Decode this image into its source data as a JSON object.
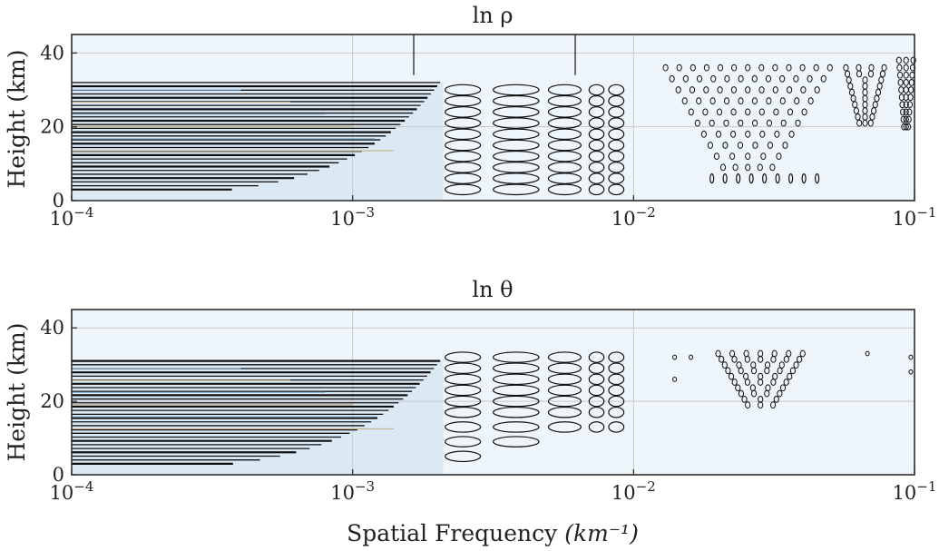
{
  "figure": {
    "xlabel": "Spatial Frequency",
    "xlabel_unit": "(km⁻¹)"
  },
  "chart_data": [
    {
      "type": "contour",
      "title": "ln ρ",
      "xlabel": "",
      "ylabel": "Height (km)",
      "xscale": "log",
      "xlim": [
        0.0001,
        0.1
      ],
      "ylim": [
        0,
        45
      ],
      "x_ticks": [
        0.0001,
        0.001,
        0.01,
        0.1
      ],
      "x_tick_labels": [
        {
          "base": "10",
          "exp": "−4"
        },
        {
          "base": "10",
          "exp": "−3"
        },
        {
          "base": "10",
          "exp": "−2"
        },
        {
          "base": "10",
          "exp": "−1"
        }
      ],
      "y_ticks": [
        0,
        20,
        40
      ],
      "grid": true,
      "band_top": 32,
      "rows": [
        3,
        6,
        9,
        12,
        15,
        18,
        21,
        24,
        27,
        30
      ],
      "lanes": [
        {
          "x_start": 0.0021,
          "x_end": 0.0029,
          "y_min": 3,
          "y_max": 32
        },
        {
          "x_start": 0.0031,
          "x_end": 0.0047,
          "y_min": 3,
          "y_max": 32
        },
        {
          "x_start": 0.0049,
          "x_end": 0.0066,
          "y_min": 1,
          "y_max": 32
        },
        {
          "x_start": 0.0069,
          "x_end": 0.0079,
          "y_min": 3,
          "y_max": 32
        },
        {
          "x_start": 0.0081,
          "x_end": 0.0093,
          "y_min": 1,
          "y_max": 30
        }
      ],
      "tall_contours": [
        {
          "x": 0.00165,
          "y_start": 34,
          "y_end": 45
        },
        {
          "x": 0.0062,
          "y_start": 34,
          "y_end": 45
        }
      ],
      "triangles": [
        {
          "x_start": 0.013,
          "x_end": 0.05,
          "y_top": 36,
          "y_bottom": 9
        },
        {
          "x_start": 0.057,
          "x_end": 0.078,
          "y_top": 36,
          "y_bottom": 21
        },
        {
          "x_start": 0.088,
          "x_end": 0.099,
          "y_top": 38,
          "y_bottom": 20
        }
      ],
      "bottom_dots": [
        {
          "x_start": 0.019,
          "x_end": 0.045,
          "y": 6
        }
      ]
    },
    {
      "type": "contour",
      "title": "ln θ",
      "xlabel": "Spatial Frequency (km⁻¹)",
      "ylabel": "Height (km)",
      "xscale": "log",
      "xlim": [
        0.0001,
        0.1
      ],
      "ylim": [
        0,
        45
      ],
      "x_ticks": [
        0.0001,
        0.001,
        0.01,
        0.1
      ],
      "x_tick_labels": [
        {
          "base": "10",
          "exp": "−4"
        },
        {
          "base": "10",
          "exp": "−3"
        },
        {
          "base": "10",
          "exp": "−2"
        },
        {
          "base": "10",
          "exp": "−1"
        }
      ],
      "y_ticks": [
        0,
        20,
        40
      ],
      "grid": true,
      "band_top": 31,
      "rows": [
        5,
        9,
        13,
        17,
        20,
        23,
        26,
        29,
        32
      ],
      "lanes": [
        {
          "x_start": 0.0021,
          "x_end": 0.0029,
          "y_min": 3,
          "y_max": 32
        },
        {
          "x_start": 0.0031,
          "x_end": 0.0047,
          "y_min": 9,
          "y_max": 32
        },
        {
          "x_start": 0.0049,
          "x_end": 0.0066,
          "y_min": 13,
          "y_max": 32
        },
        {
          "x_start": 0.0069,
          "x_end": 0.0079,
          "y_min": 13,
          "y_max": 32
        },
        {
          "x_start": 0.0081,
          "x_end": 0.0093,
          "y_min": 13,
          "y_max": 32
        }
      ],
      "tall_contours": [],
      "triangles": [
        {
          "x_start": 0.02,
          "x_end": 0.04,
          "y_top": 33,
          "y_bottom": 19
        }
      ],
      "small_marks": [
        {
          "x": 0.014,
          "y": 32
        },
        {
          "x": 0.016,
          "y": 32
        },
        {
          "x": 0.014,
          "y": 26
        },
        {
          "x": 0.068,
          "y": 33
        },
        {
          "x": 0.097,
          "y": 32
        },
        {
          "x": 0.097,
          "y": 28
        }
      ],
      "bottom_dots": []
    }
  ]
}
